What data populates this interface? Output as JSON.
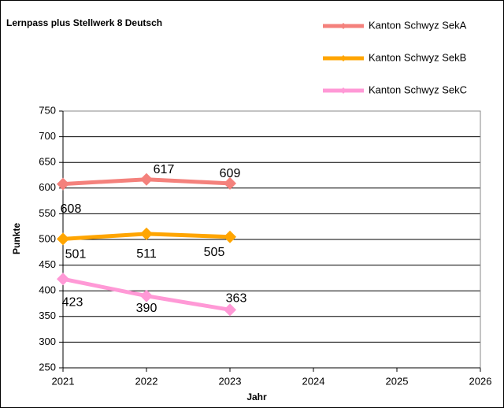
{
  "chart_data": {
    "type": "line",
    "title": "Lernpass plus Stellwerk 8 Deutsch",
    "x_label": "Jahr",
    "y_label": "Punkte",
    "x": [
      2021,
      2022,
      2023
    ],
    "series": [
      {
        "name": "Kanton Schwyz SekA",
        "color": "#f4817c",
        "values": [
          608,
          617,
          609
        ]
      },
      {
        "name": "Kanton Schwyz SekB",
        "color": "#ffa500",
        "values": [
          501,
          511,
          505
        ]
      },
      {
        "name": "Kanton Schwyz SekC",
        "color": "#ff99d6",
        "values": [
          423,
          390,
          363
        ]
      }
    ],
    "xlim": [
      2021,
      2026
    ],
    "xticks": [
      2021,
      2022,
      2023,
      2024,
      2025,
      2026
    ],
    "ylim": [
      250,
      750
    ],
    "yticks": [
      250,
      300,
      350,
      400,
      450,
      500,
      550,
      600,
      650,
      700,
      750
    ],
    "grid": true,
    "legend": "top-right"
  }
}
